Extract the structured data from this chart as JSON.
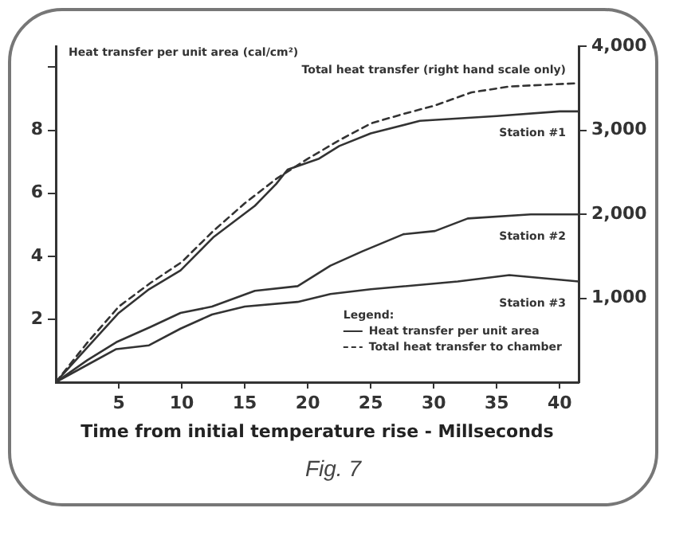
{
  "chart_data": {
    "type": "line",
    "xlabel": "Time from initial temperature rise - Millseconds",
    "ylabel": "Heat transfer per unit area (cal/cm²)",
    "legend_title": "Legend:",
    "annotations": [
      "Heat transfer per unit area",
      "Total heat transfer to chamber",
      "Fig. 7"
    ],
    "xlim": [
      0,
      41.5
    ],
    "xticks": [
      5,
      10,
      15,
      20,
      25,
      30,
      35,
      40
    ],
    "ylim": [
      0,
      10.67
    ],
    "yticks": [
      2,
      4,
      6,
      8,
      {
        "value": 10,
        "label": null
      }
    ],
    "y2lim": [
      0,
      4000
    ],
    "y2ticks": [
      {
        "value": 1000,
        "label": "1,000"
      },
      {
        "value": 2000,
        "label": "2,000"
      },
      {
        "value": 3000,
        "label": "3,000"
      },
      {
        "value": 4000,
        "label": "4,000"
      }
    ],
    "grid": false,
    "legend": false,
    "marker": "none",
    "series": [
      {
        "name": "Station #1",
        "color": "#333333",
        "line_style": "solid",
        "x": [
          0,
          2.5,
          5,
          7.4,
          9.9,
          12.5,
          15.8,
          17.5,
          18.4,
          20.9,
          22.5,
          25,
          28.9,
          35,
          40,
          41.5
        ],
        "values": [
          0,
          1.1,
          2.2,
          2.95,
          3.55,
          4.6,
          5.6,
          6.3,
          6.75,
          7.1,
          7.5,
          7.9,
          8.3,
          8.45,
          8.6,
          8.6
        ]
      },
      {
        "name": "Total heat transfer (right hand scale only)",
        "color": "#333333",
        "line_style": "dashed",
        "axis": "y2",
        "x": [
          0,
          2.5,
          5,
          7.5,
          10,
          12.5,
          15,
          17.5,
          20,
          22.5,
          25,
          27.5,
          30,
          33,
          36,
          41.5
        ],
        "values": [
          0,
          470,
          900,
          1180,
          1430,
          1800,
          2130,
          2420,
          2660,
          2880,
          3080,
          3190,
          3290,
          3450,
          3520,
          3560
        ]
      },
      {
        "name": "Station #2",
        "color": "#333333",
        "line_style": "solid",
        "x": [
          0,
          2.5,
          4.8,
          7.5,
          9.9,
          12.4,
          15.8,
          19.2,
          21.8,
          24.3,
          27.6,
          30.1,
          32.7,
          37.7,
          41.5
        ],
        "values": [
          0,
          0.7,
          1.27,
          1.75,
          2.2,
          2.4,
          2.9,
          3.05,
          3.7,
          4.15,
          4.7,
          4.8,
          5.2,
          5.33,
          5.33
        ]
      },
      {
        "name": "Station #3",
        "color": "#333333",
        "line_style": "solid",
        "x": [
          0,
          2.5,
          4.8,
          7.4,
          9.9,
          12.4,
          15,
          19.2,
          21.8,
          25,
          31.9,
          36,
          41.5
        ],
        "values": [
          0,
          0.55,
          1.05,
          1.17,
          1.7,
          2.15,
          2.4,
          2.55,
          2.8,
          2.95,
          3.2,
          3.4,
          3.2
        ]
      }
    ]
  }
}
